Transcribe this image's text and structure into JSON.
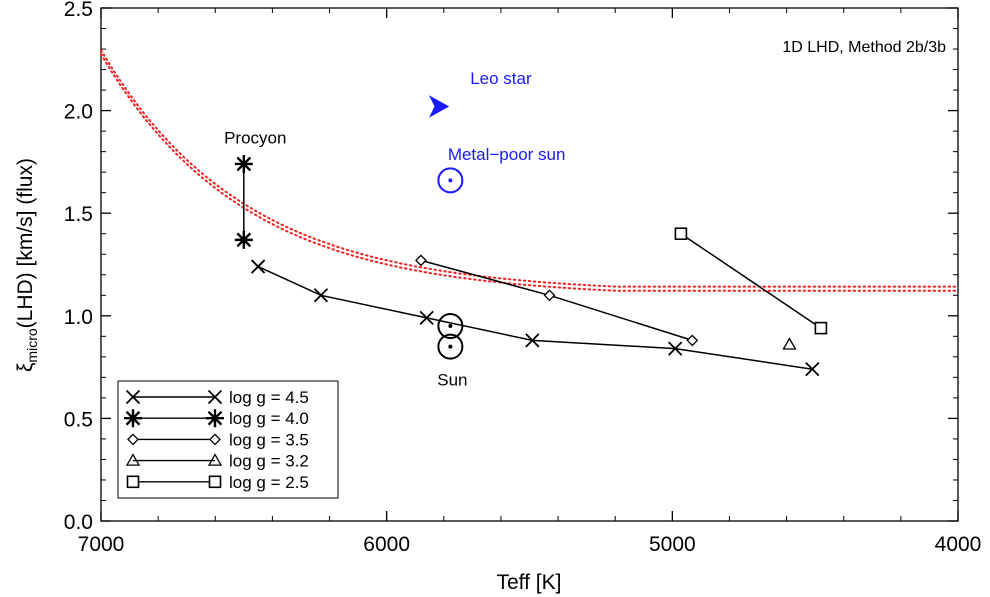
{
  "chart_data": {
    "type": "line",
    "xlabel": "Teff [K]",
    "ylabel": {
      "prefix": "ξ",
      "subscript": "micro",
      "suffix": "(LHD) [km/s]  (flux)"
    },
    "xlim": [
      7000,
      4000
    ],
    "ylim": [
      0.0,
      2.5
    ],
    "xticks": [
      7000,
      6000,
      5000,
      4000
    ],
    "xtick_labels": [
      "7000",
      "6000",
      "5000",
      "4000"
    ],
    "yticks": [
      0.0,
      0.5,
      1.0,
      1.5,
      2.0,
      2.5
    ],
    "ytick_labels": [
      "0.0",
      "0.5",
      "1.0",
      "1.5",
      "2.0",
      "2.5"
    ],
    "annotation": "1D LHD, Method 2b/3b",
    "grid": false,
    "legend_position": "bottom-left",
    "series": [
      {
        "name": "log g = 4.5",
        "marker": "x",
        "x": [
          6450,
          6230,
          5860,
          5490,
          4990,
          4510
        ],
        "y": [
          1.24,
          1.1,
          0.99,
          0.88,
          0.84,
          0.74
        ]
      },
      {
        "name": "log g = 4.0",
        "marker": "star",
        "x": [
          6500,
          6500
        ],
        "y": [
          1.74,
          1.37
        ]
      },
      {
        "name": "log g = 3.5",
        "marker": "diamond",
        "x": [
          5880,
          5430,
          4930
        ],
        "y": [
          1.27,
          1.1,
          0.88
        ]
      },
      {
        "name": "log g = 3.2",
        "marker": "triangle",
        "x": [
          4590
        ],
        "y": [
          0.86
        ]
      },
      {
        "name": "log g = 2.5",
        "marker": "square",
        "x": [
          4970,
          4480
        ],
        "y": [
          1.4,
          0.94
        ]
      }
    ],
    "dotted_fits": [
      {
        "color": "#ee2222",
        "x0": 7000,
        "y0": 2.295,
        "xmax": 5200,
        "yasym": 1.11,
        "tau": 500
      },
      {
        "color": "#ee2222",
        "x0": 7000,
        "y0": 2.275,
        "xmax": 5200,
        "yasym": 1.09,
        "tau": 500
      }
    ],
    "special_points": [
      {
        "name": "Leo star",
        "marker": "arrowhead",
        "x": 5820,
        "y": 2.02,
        "color": "#1a1aff"
      },
      {
        "name": "Metal-poor sun",
        "marker": "sun",
        "x": 5777,
        "y": 1.66,
        "color": "#1a1aff"
      },
      {
        "name": "Sun",
        "marker": "sun",
        "x": 5777,
        "y": 0.95,
        "color": "#000000"
      },
      {
        "name": "Sun-b",
        "marker": "sun",
        "x": 5777,
        "y": 0.85,
        "color": "#000000"
      }
    ],
    "point_labels": [
      {
        "text": "Procyon",
        "x": 6460,
        "y": 1.84,
        "color": "#000000"
      },
      {
        "text": "Leo star",
        "x": 5600,
        "y": 2.13,
        "color": "#1a1aff"
      },
      {
        "text": "Metal−poor sun",
        "x": 5580,
        "y": 1.76,
        "color": "#1a1aff"
      },
      {
        "text": "Sun",
        "x": 5770,
        "y": 0.66,
        "color": "#000000"
      }
    ]
  }
}
